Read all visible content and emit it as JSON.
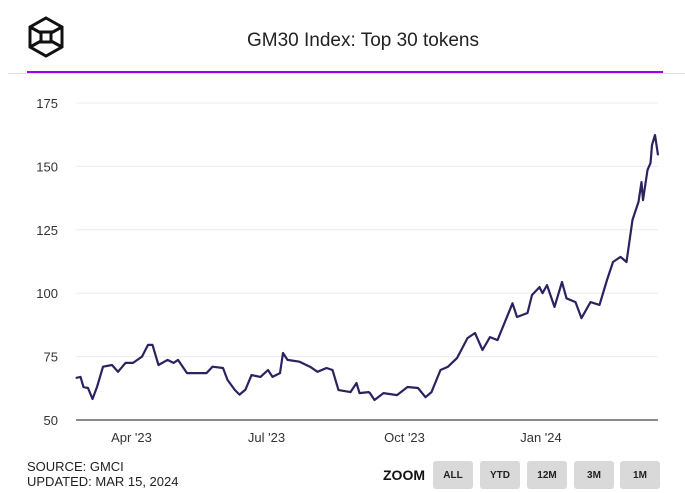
{
  "header": {
    "title": "GM30 Index: Top 30 tokens"
  },
  "footer": {
    "source": "SOURCE: GMCI",
    "updated": "UPDATED: MAR 15, 2024",
    "zoom_label": "ZOOM",
    "zoom_buttons": [
      "ALL",
      "YTD",
      "12M",
      "3M",
      "1M"
    ]
  },
  "colors": {
    "line": "#2a2360",
    "accent": "#a000f0",
    "grid": "#ececec"
  },
  "chart_data": {
    "type": "line",
    "title": "GM30 Index: Top 30 tokens",
    "xlabel": "",
    "ylabel": "",
    "x_unit": "days since 2023-03-08",
    "xlim": [
      0,
      388
    ],
    "ylim": [
      50,
      175
    ],
    "yticks": [
      50,
      75,
      100,
      125,
      150,
      175
    ],
    "xticks": [
      {
        "x": 37,
        "label": "Apr '23"
      },
      {
        "x": 127,
        "label": "Jul '23"
      },
      {
        "x": 219,
        "label": "Oct '23"
      },
      {
        "x": 310,
        "label": "Jan '24"
      }
    ],
    "grid": true,
    "series": [
      {
        "name": "GM30",
        "points": [
          [
            0,
            66.6
          ],
          [
            3,
            67
          ],
          [
            5,
            63
          ],
          [
            8,
            62.6
          ],
          [
            11,
            58.3
          ],
          [
            14,
            63
          ],
          [
            16,
            67
          ],
          [
            18,
            71
          ],
          [
            24,
            71.7
          ],
          [
            28,
            69
          ],
          [
            33,
            72.5
          ],
          [
            38,
            72.5
          ],
          [
            44,
            75
          ],
          [
            48,
            79.6
          ],
          [
            51,
            79.6
          ],
          [
            55,
            71.7
          ],
          [
            61,
            73.7
          ],
          [
            65,
            72.5
          ],
          [
            68,
            73.7
          ],
          [
            74,
            68.5
          ],
          [
            81,
            68.5
          ],
          [
            87,
            68.5
          ],
          [
            91,
            71
          ],
          [
            98,
            70.5
          ],
          [
            101,
            65.8
          ],
          [
            106,
            61.8
          ],
          [
            109,
            60
          ],
          [
            113,
            62
          ],
          [
            117,
            67.7
          ],
          [
            123,
            67
          ],
          [
            128,
            69.7
          ],
          [
            131,
            67
          ],
          [
            136,
            68.5
          ],
          [
            138,
            76.4
          ],
          [
            141,
            73.7
          ],
          [
            149,
            73
          ],
          [
            156,
            71
          ],
          [
            161,
            69
          ],
          [
            167,
            70.5
          ],
          [
            171,
            69.7
          ],
          [
            175,
            61.8
          ],
          [
            183,
            61
          ],
          [
            187,
            64.6
          ],
          [
            189,
            60.6
          ],
          [
            195,
            61
          ],
          [
            196,
            60.6
          ],
          [
            199,
            57.9
          ],
          [
            205,
            60.6
          ],
          [
            214,
            59.8
          ],
          [
            221,
            63
          ],
          [
            228,
            62.6
          ],
          [
            233,
            59
          ],
          [
            237,
            61
          ],
          [
            243,
            69.7
          ],
          [
            248,
            71
          ],
          [
            254,
            74.4
          ],
          [
            261,
            82.3
          ],
          [
            266,
            84.3
          ],
          [
            271,
            77.6
          ],
          [
            276,
            82.7
          ],
          [
            281,
            81.5
          ],
          [
            287,
            90.2
          ],
          [
            291,
            96
          ],
          [
            294,
            90.6
          ],
          [
            301,
            92.2
          ],
          [
            304,
            99.3
          ],
          [
            309,
            102.4
          ],
          [
            311,
            100
          ],
          [
            314,
            103.2
          ],
          [
            319,
            94.6
          ],
          [
            324,
            104.4
          ],
          [
            327,
            98
          ],
          [
            333,
            96.5
          ],
          [
            337,
            90.2
          ],
          [
            343,
            96.5
          ],
          [
            349,
            95.4
          ],
          [
            354,
            105.2
          ],
          [
            358,
            112.3
          ],
          [
            363,
            114.3
          ],
          [
            367,
            112.3
          ],
          [
            371,
            128.9
          ],
          [
            375,
            136
          ],
          [
            377,
            143.8
          ],
          [
            378,
            136.7
          ],
          [
            381,
            148.6
          ],
          [
            383,
            151.3
          ],
          [
            384,
            158.4
          ],
          [
            386,
            162.4
          ],
          [
            388,
            154.5
          ]
        ]
      }
    ]
  }
}
